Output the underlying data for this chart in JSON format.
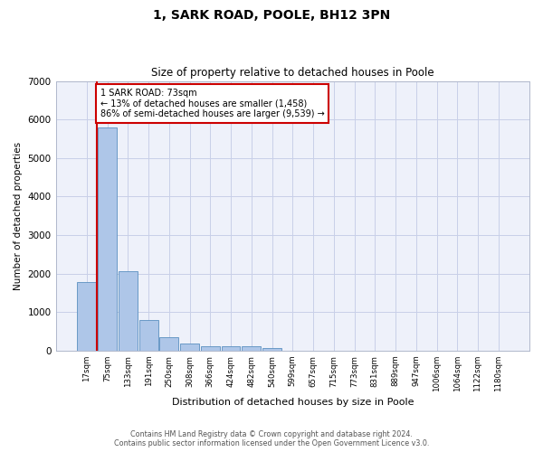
{
  "title": "1, SARK ROAD, POOLE, BH12 3PN",
  "subtitle": "Size of property relative to detached houses in Poole",
  "xlabel": "Distribution of detached houses by size in Poole",
  "ylabel": "Number of detached properties",
  "bin_labels": [
    "17sqm",
    "75sqm",
    "133sqm",
    "191sqm",
    "250sqm",
    "308sqm",
    "366sqm",
    "424sqm",
    "482sqm",
    "540sqm",
    "599sqm",
    "657sqm",
    "715sqm",
    "773sqm",
    "831sqm",
    "889sqm",
    "947sqm",
    "1006sqm",
    "1064sqm",
    "1122sqm",
    "1180sqm"
  ],
  "bar_values": [
    1780,
    5800,
    2060,
    800,
    340,
    190,
    120,
    110,
    105,
    70,
    0,
    0,
    0,
    0,
    0,
    0,
    0,
    0,
    0,
    0,
    0
  ],
  "bar_color": "#aec6e8",
  "bar_edge_color": "#5a8fc0",
  "property_label": "1 SARK ROAD: 73sqm",
  "annotation_line1": "← 13% of detached houses are smaller (1,458)",
  "annotation_line2": "86% of semi-detached houses are larger (9,539) →",
  "annotation_box_color": "#ffffff",
  "annotation_box_edge": "#cc0000",
  "vline_color": "#cc0000",
  "vline_x_index": 1,
  "ylim": [
    0,
    7000
  ],
  "yticks": [
    0,
    1000,
    2000,
    3000,
    4000,
    5000,
    6000,
    7000
  ],
  "bg_color": "#eef1fa",
  "grid_color": "#c8cfe8",
  "footnote1": "Contains HM Land Registry data © Crown copyright and database right 2024.",
  "footnote2": "Contains public sector information licensed under the Open Government Licence v3.0."
}
